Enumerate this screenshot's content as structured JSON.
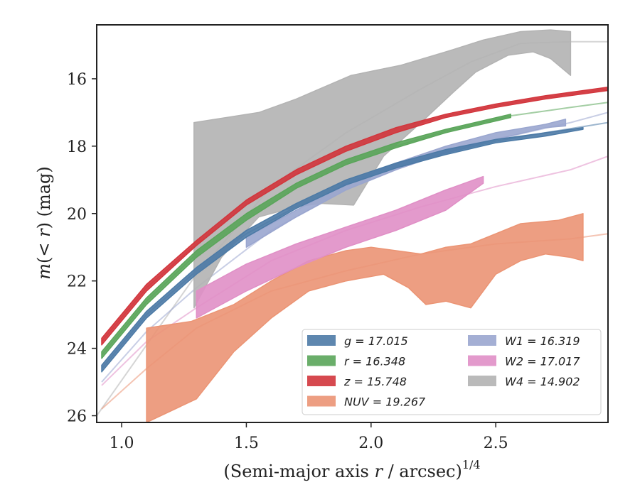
{
  "chart_data": {
    "type": "area",
    "xlabel": "(Semi-major axis r / arcsec)^1/4",
    "ylabel": "m(< r) (mag)",
    "xlim": [
      0.9,
      2.95
    ],
    "ylim": [
      26.2,
      14.4
    ],
    "y_inverted": true,
    "xticks": [
      1.0,
      1.5,
      2.0,
      2.5
    ],
    "xtick_labels": [
      "1.0",
      "1.5",
      "2.0",
      "2.5"
    ],
    "yticks": [
      16,
      18,
      20,
      22,
      24,
      26
    ],
    "ytick_labels": [
      "16",
      "18",
      "20",
      "22",
      "24",
      "26"
    ],
    "grid": false,
    "legend_position": "lower-right",
    "legend": [
      {
        "label": "g = 17.015",
        "color": "#4c7aa6"
      },
      {
        "label": "W1 = 16.319",
        "color": "#9aa6cf"
      },
      {
        "label": "r = 16.348",
        "color": "#5aa55a"
      },
      {
        "label": "W2 = 17.017",
        "color": "#e08fc6"
      },
      {
        "label": "z = 15.748",
        "color": "#d2353c"
      },
      {
        "label": "W4 = 14.902",
        "color": "#b3b3b3"
      },
      {
        "label": "NUV = 19.267",
        "color": "#eb9474"
      }
    ],
    "series": [
      {
        "name": "W4",
        "color": "#b3b3b3",
        "band_upper": [
          [
            1.29,
            17.3
          ],
          [
            1.55,
            17.0
          ],
          [
            1.7,
            16.6
          ],
          [
            1.92,
            15.9
          ],
          [
            2.12,
            15.6
          ],
          [
            2.3,
            15.2
          ],
          [
            2.45,
            14.85
          ],
          [
            2.6,
            14.6
          ],
          [
            2.72,
            14.55
          ],
          [
            2.8,
            14.6
          ]
        ],
        "band_lower": [
          [
            1.29,
            22.8
          ],
          [
            1.4,
            21.3
          ],
          [
            1.55,
            20.1
          ],
          [
            1.7,
            19.8
          ],
          [
            1.8,
            19.7
          ],
          [
            1.93,
            19.75
          ],
          [
            2.05,
            18.3
          ],
          [
            2.2,
            17.3
          ],
          [
            2.33,
            16.4
          ],
          [
            2.42,
            15.8
          ],
          [
            2.55,
            15.3
          ],
          [
            2.65,
            15.2
          ],
          [
            2.72,
            15.4
          ],
          [
            2.8,
            15.9
          ]
        ],
        "model_curve": [
          [
            0.9,
            26.0
          ],
          [
            1.3,
            21.8
          ],
          [
            1.6,
            19.2
          ],
          [
            1.9,
            17.6
          ],
          [
            2.2,
            16.3
          ],
          [
            2.4,
            15.5
          ],
          [
            2.6,
            14.95
          ],
          [
            2.8,
            14.9
          ],
          [
            2.95,
            14.9
          ]
        ]
      },
      {
        "name": "NUV",
        "color": "#eb9474",
        "band_upper": [
          [
            1.1,
            23.4
          ],
          [
            1.28,
            23.2
          ],
          [
            1.45,
            22.7
          ],
          [
            1.6,
            22.0
          ],
          [
            1.75,
            21.4
          ],
          [
            1.9,
            21.1
          ],
          [
            2.0,
            21.0
          ],
          [
            2.1,
            21.1
          ],
          [
            2.2,
            21.2
          ],
          [
            2.3,
            21.0
          ],
          [
            2.4,
            20.9
          ],
          [
            2.5,
            20.6
          ],
          [
            2.6,
            20.3
          ],
          [
            2.75,
            20.2
          ],
          [
            2.85,
            20.0
          ]
        ],
        "band_lower": [
          [
            1.1,
            26.2
          ],
          [
            1.3,
            25.5
          ],
          [
            1.45,
            24.1
          ],
          [
            1.6,
            23.1
          ],
          [
            1.75,
            22.3
          ],
          [
            1.9,
            22.0
          ],
          [
            2.05,
            21.8
          ],
          [
            2.15,
            22.2
          ],
          [
            2.22,
            22.7
          ],
          [
            2.3,
            22.6
          ],
          [
            2.4,
            22.8
          ],
          [
            2.5,
            21.8
          ],
          [
            2.6,
            21.4
          ],
          [
            2.7,
            21.2
          ],
          [
            2.8,
            21.3
          ],
          [
            2.85,
            21.4
          ]
        ],
        "model_curve": [
          [
            0.92,
            25.8
          ],
          [
            1.1,
            24.6
          ],
          [
            1.3,
            23.4
          ],
          [
            1.6,
            22.3
          ],
          [
            1.9,
            21.7
          ],
          [
            2.2,
            21.2
          ],
          [
            2.5,
            20.9
          ],
          [
            2.8,
            20.75
          ],
          [
            2.95,
            20.6
          ]
        ]
      },
      {
        "name": "W2",
        "color": "#e08fc6",
        "band_upper": [
          [
            1.3,
            22.3
          ],
          [
            1.5,
            21.5
          ],
          [
            1.7,
            20.9
          ],
          [
            1.9,
            20.4
          ],
          [
            2.1,
            19.9
          ],
          [
            2.3,
            19.3
          ],
          [
            2.45,
            18.9
          ]
        ],
        "band_lower": [
          [
            1.3,
            23.1
          ],
          [
            1.5,
            22.3
          ],
          [
            1.7,
            21.6
          ],
          [
            1.9,
            21.0
          ],
          [
            2.1,
            20.5
          ],
          [
            2.3,
            19.9
          ],
          [
            2.45,
            19.1
          ]
        ],
        "model_curve": [
          [
            0.92,
            25.1
          ],
          [
            1.1,
            23.8
          ],
          [
            1.3,
            22.8
          ],
          [
            1.6,
            21.4
          ],
          [
            1.9,
            20.5
          ],
          [
            2.2,
            19.8
          ],
          [
            2.5,
            19.2
          ],
          [
            2.8,
            18.7
          ],
          [
            2.95,
            18.3
          ]
        ]
      },
      {
        "name": "W1",
        "color": "#9aa6cf",
        "band_upper": [
          [
            1.5,
            20.7
          ],
          [
            1.7,
            19.9
          ],
          [
            1.9,
            19.1
          ],
          [
            2.1,
            18.5
          ],
          [
            2.3,
            18.0
          ],
          [
            2.5,
            17.6
          ],
          [
            2.7,
            17.35
          ],
          [
            2.78,
            17.2
          ]
        ],
        "band_lower": [
          [
            1.5,
            21.0
          ],
          [
            1.7,
            20.1
          ],
          [
            1.9,
            19.3
          ],
          [
            2.1,
            18.7
          ],
          [
            2.3,
            18.2
          ],
          [
            2.5,
            17.8
          ],
          [
            2.7,
            17.45
          ],
          [
            2.78,
            17.4
          ]
        ],
        "model_curve": [
          [
            0.92,
            25.0
          ],
          [
            1.1,
            23.5
          ],
          [
            1.3,
            22.2
          ],
          [
            1.6,
            20.5
          ],
          [
            1.9,
            19.3
          ],
          [
            2.2,
            18.4
          ],
          [
            2.5,
            17.8
          ],
          [
            2.8,
            17.3
          ],
          [
            2.95,
            17.0
          ]
        ]
      },
      {
        "name": "g",
        "color": "#4c7aa6",
        "band_upper": [
          [
            0.92,
            24.5
          ],
          [
            1.1,
            22.9
          ],
          [
            1.3,
            21.6
          ],
          [
            1.5,
            20.5
          ],
          [
            1.7,
            19.7
          ],
          [
            1.9,
            19.0
          ],
          [
            2.1,
            18.5
          ],
          [
            2.3,
            18.1
          ],
          [
            2.5,
            17.8
          ],
          [
            2.7,
            17.6
          ],
          [
            2.85,
            17.45
          ]
        ],
        "band_lower": [
          [
            0.92,
            24.7
          ],
          [
            1.1,
            23.1
          ],
          [
            1.3,
            21.8
          ],
          [
            1.5,
            20.7
          ],
          [
            1.7,
            19.85
          ],
          [
            1.9,
            19.15
          ],
          [
            2.1,
            18.65
          ],
          [
            2.3,
            18.25
          ],
          [
            2.5,
            17.9
          ],
          [
            2.7,
            17.7
          ],
          [
            2.85,
            17.5
          ]
        ],
        "model_curve": [
          [
            0.92,
            24.6
          ],
          [
            1.1,
            23.0
          ],
          [
            1.3,
            21.7
          ],
          [
            1.5,
            20.6
          ],
          [
            1.7,
            19.8
          ],
          [
            1.9,
            19.1
          ],
          [
            2.1,
            18.6
          ],
          [
            2.3,
            18.2
          ],
          [
            2.5,
            17.85
          ],
          [
            2.7,
            17.6
          ],
          [
            2.95,
            17.3
          ]
        ]
      },
      {
        "name": "r",
        "color": "#5aa55a",
        "band_upper": [
          [
            0.92,
            24.1
          ],
          [
            1.1,
            22.5
          ],
          [
            1.3,
            21.1
          ],
          [
            1.5,
            20.0
          ],
          [
            1.7,
            19.1
          ],
          [
            1.9,
            18.4
          ],
          [
            2.1,
            17.9
          ],
          [
            2.3,
            17.5
          ],
          [
            2.56,
            17.05
          ]
        ],
        "band_lower": [
          [
            0.92,
            24.3
          ],
          [
            1.1,
            22.7
          ],
          [
            1.3,
            21.3
          ],
          [
            1.5,
            20.2
          ],
          [
            1.7,
            19.25
          ],
          [
            1.9,
            18.55
          ],
          [
            2.1,
            18.05
          ],
          [
            2.3,
            17.6
          ],
          [
            2.56,
            17.15
          ]
        ],
        "model_curve": [
          [
            0.92,
            24.2
          ],
          [
            1.1,
            22.6
          ],
          [
            1.3,
            21.2
          ],
          [
            1.5,
            20.1
          ],
          [
            1.7,
            19.2
          ],
          [
            1.9,
            18.5
          ],
          [
            2.1,
            18.0
          ],
          [
            2.3,
            17.55
          ],
          [
            2.56,
            17.1
          ],
          [
            2.8,
            16.85
          ],
          [
            2.95,
            16.7
          ]
        ]
      },
      {
        "name": "z",
        "color": "#d2353c",
        "band_upper": [
          [
            0.92,
            23.7
          ],
          [
            1.1,
            22.1
          ],
          [
            1.3,
            20.8
          ],
          [
            1.5,
            19.6
          ],
          [
            1.7,
            18.7
          ],
          [
            1.9,
            18.0
          ],
          [
            2.1,
            17.45
          ],
          [
            2.3,
            17.05
          ],
          [
            2.5,
            16.75
          ],
          [
            2.7,
            16.5
          ],
          [
            2.95,
            16.25
          ]
        ],
        "band_lower": [
          [
            0.92,
            23.9
          ],
          [
            1.1,
            22.3
          ],
          [
            1.3,
            20.95
          ],
          [
            1.5,
            19.75
          ],
          [
            1.7,
            18.85
          ],
          [
            1.9,
            18.15
          ],
          [
            2.1,
            17.6
          ],
          [
            2.3,
            17.15
          ],
          [
            2.5,
            16.85
          ],
          [
            2.7,
            16.6
          ],
          [
            2.95,
            16.35
          ]
        ],
        "model_curve": [
          [
            0.92,
            23.8
          ],
          [
            1.1,
            22.2
          ],
          [
            1.3,
            20.9
          ],
          [
            1.5,
            19.7
          ],
          [
            1.7,
            18.8
          ],
          [
            1.9,
            18.1
          ],
          [
            2.1,
            17.5
          ],
          [
            2.3,
            17.1
          ],
          [
            2.5,
            16.8
          ],
          [
            2.7,
            16.55
          ],
          [
            2.95,
            16.3
          ]
        ]
      }
    ]
  }
}
